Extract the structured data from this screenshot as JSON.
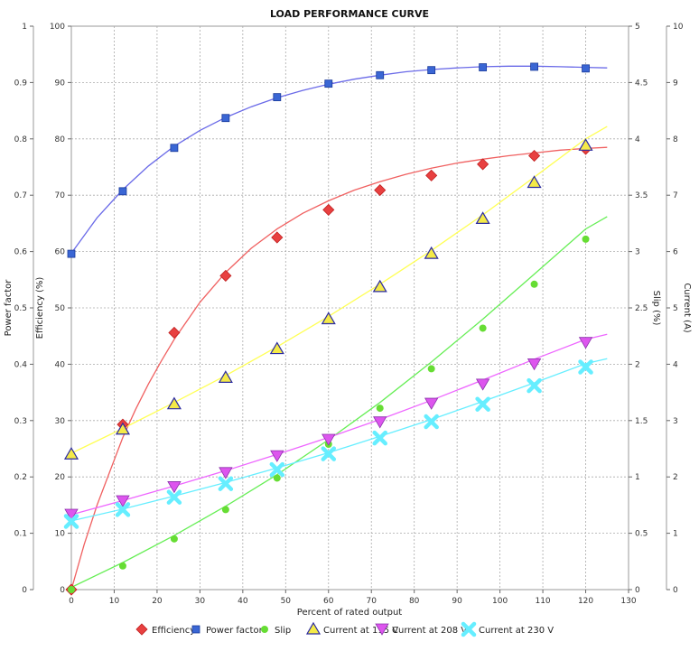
{
  "chart_data": {
    "type": "scatter",
    "title": "LOAD PERFORMANCE CURVE",
    "xlabel": "Percent of rated output",
    "xlim": [
      0,
      130
    ],
    "x_ticks": [
      "0",
      "10",
      "20",
      "30",
      "40",
      "50",
      "60",
      "70",
      "80",
      "90",
      "100",
      "110",
      "120",
      "130"
    ],
    "grid": true,
    "legend_position": "bottom",
    "axes": {
      "power_factor": {
        "label": "Power factor",
        "range": [
          0,
          1
        ],
        "ticks": [
          "0",
          "0.1",
          "0.2",
          "0.3",
          "0.4",
          "0.5",
          "0.6",
          "0.7",
          "0.8",
          "0.9",
          "1"
        ]
      },
      "efficiency": {
        "label": "Efficiency (%)",
        "range": [
          0,
          100
        ],
        "ticks": [
          "0",
          "10",
          "20",
          "30",
          "40",
          "50",
          "60",
          "70",
          "80",
          "90",
          "100"
        ]
      },
      "slip": {
        "label": "Slip (%)",
        "range": [
          0,
          5
        ],
        "ticks": [
          "0",
          "0.5",
          "1",
          "1.5",
          "2",
          "2.5",
          "3",
          "3.5",
          "4",
          "4.5",
          "5"
        ]
      },
      "current": {
        "label": "Current (A)",
        "range": [
          0,
          10
        ],
        "ticks": [
          "0",
          "1",
          "2",
          "3",
          "4",
          "5",
          "6",
          "7",
          "8",
          "9",
          "10"
        ]
      }
    },
    "series": [
      {
        "name": "Efficiency",
        "axis": "efficiency",
        "marker": "diamond",
        "color": "#e84040",
        "line_color": "#f06060",
        "points": [
          [
            0,
            0
          ],
          [
            12,
            29.3
          ],
          [
            24,
            45.6
          ],
          [
            36,
            55.7
          ],
          [
            48,
            62.5
          ],
          [
            60,
            67.4
          ],
          [
            72,
            70.9
          ],
          [
            84,
            73.5
          ],
          [
            96,
            75.5
          ],
          [
            108,
            77
          ],
          [
            120,
            78.2
          ]
        ],
        "curve": [
          [
            0,
            0
          ],
          [
            3,
            8
          ],
          [
            6,
            15
          ],
          [
            9,
            21
          ],
          [
            12,
            27
          ],
          [
            15,
            32
          ],
          [
            18,
            36.5
          ],
          [
            21,
            40.6
          ],
          [
            24,
            44.4
          ],
          [
            30,
            51
          ],
          [
            36,
            56.3
          ],
          [
            42,
            60.6
          ],
          [
            48,
            64
          ],
          [
            54,
            66.8
          ],
          [
            60,
            69
          ],
          [
            66,
            70.9
          ],
          [
            72,
            72.4
          ],
          [
            78,
            73.7
          ],
          [
            84,
            74.8
          ],
          [
            90,
            75.7
          ],
          [
            96,
            76.4
          ],
          [
            102,
            77
          ],
          [
            108,
            77.5
          ],
          [
            114,
            78
          ],
          [
            120,
            78.3
          ],
          [
            125,
            78.5
          ]
        ]
      },
      {
        "name": "Power factor",
        "axis": "power_factor",
        "marker": "square",
        "color": "#3a66d4",
        "line_color": "#6a6ae8",
        "points": [
          [
            0,
            0.596
          ],
          [
            12,
            0.707
          ],
          [
            24,
            0.784
          ],
          [
            36,
            0.837
          ],
          [
            48,
            0.874
          ],
          [
            60,
            0.898
          ],
          [
            72,
            0.913
          ],
          [
            84,
            0.922
          ],
          [
            96,
            0.927
          ],
          [
            108,
            0.928
          ],
          [
            120,
            0.925
          ]
        ],
        "curve": [
          [
            0,
            0.597
          ],
          [
            6,
            0.66
          ],
          [
            12,
            0.71
          ],
          [
            18,
            0.752
          ],
          [
            24,
            0.787
          ],
          [
            30,
            0.815
          ],
          [
            36,
            0.838
          ],
          [
            42,
            0.857
          ],
          [
            48,
            0.873
          ],
          [
            54,
            0.886
          ],
          [
            60,
            0.897
          ],
          [
            66,
            0.906
          ],
          [
            72,
            0.913
          ],
          [
            78,
            0.919
          ],
          [
            84,
            0.923
          ],
          [
            90,
            0.926
          ],
          [
            96,
            0.928
          ],
          [
            102,
            0.929
          ],
          [
            108,
            0.929
          ],
          [
            114,
            0.928
          ],
          [
            120,
            0.927
          ],
          [
            125,
            0.926
          ]
        ]
      },
      {
        "name": "Slip",
        "axis": "slip",
        "marker": "circle",
        "color": "#66dd33",
        "line_color": "#66ee55",
        "points": [
          [
            0,
            0
          ],
          [
            12,
            0.21
          ],
          [
            24,
            0.45
          ],
          [
            36,
            0.71
          ],
          [
            48,
            0.99
          ],
          [
            60,
            1.29
          ],
          [
            72,
            1.61
          ],
          [
            84,
            1.96
          ],
          [
            96,
            2.32
          ],
          [
            108,
            2.71
          ],
          [
            120,
            3.11
          ]
        ],
        "curve": [
          [
            0,
            0.02
          ],
          [
            12,
            0.24
          ],
          [
            24,
            0.48
          ],
          [
            36,
            0.74
          ],
          [
            48,
            1.02
          ],
          [
            60,
            1.33
          ],
          [
            72,
            1.66
          ],
          [
            84,
            2.02
          ],
          [
            96,
            2.4
          ],
          [
            108,
            2.8
          ],
          [
            120,
            3.2
          ],
          [
            125,
            3.31
          ]
        ]
      },
      {
        "name": "Current at 115 V",
        "axis": "current",
        "marker": "triangle-up",
        "color": "#f4ea48",
        "line_color": "#ffff55",
        "points": [
          [
            0,
            2.4
          ],
          [
            12,
            2.84
          ],
          [
            24,
            3.29
          ],
          [
            36,
            3.76
          ],
          [
            48,
            4.27
          ],
          [
            60,
            4.8
          ],
          [
            72,
            5.37
          ],
          [
            84,
            5.96
          ],
          [
            96,
            6.58
          ],
          [
            108,
            7.22
          ],
          [
            120,
            7.88
          ]
        ],
        "curve": [
          [
            0,
            2.42
          ],
          [
            12,
            2.86
          ],
          [
            24,
            3.32
          ],
          [
            36,
            3.8
          ],
          [
            48,
            4.31
          ],
          [
            60,
            4.85
          ],
          [
            72,
            5.42
          ],
          [
            84,
            6.02
          ],
          [
            96,
            6.65
          ],
          [
            108,
            7.32
          ],
          [
            120,
            8.0
          ],
          [
            125,
            8.22
          ]
        ]
      },
      {
        "name": "Current at 208 V",
        "axis": "current",
        "marker": "triangle-down",
        "color": "#dd55ee",
        "line_color": "#ee66ff",
        "points": [
          [
            0,
            1.33
          ],
          [
            12,
            1.57
          ],
          [
            24,
            1.82
          ],
          [
            36,
            2.07
          ],
          [
            48,
            2.37
          ],
          [
            60,
            2.66
          ],
          [
            72,
            2.97
          ],
          [
            84,
            3.3
          ],
          [
            96,
            3.64
          ],
          [
            108,
            4.0
          ],
          [
            120,
            4.38
          ]
        ],
        "curve": [
          [
            0,
            1.33
          ],
          [
            12,
            1.58
          ],
          [
            24,
            1.84
          ],
          [
            36,
            2.11
          ],
          [
            48,
            2.4
          ],
          [
            60,
            2.7
          ],
          [
            72,
            3.02
          ],
          [
            84,
            3.36
          ],
          [
            96,
            3.72
          ],
          [
            108,
            4.09
          ],
          [
            120,
            4.44
          ],
          [
            125,
            4.53
          ]
        ]
      },
      {
        "name": "Current at 230 V",
        "axis": "current",
        "marker": "x",
        "color": "#66eeff",
        "line_color": "#66eeff",
        "points": [
          [
            0,
            1.21
          ],
          [
            12,
            1.42
          ],
          [
            24,
            1.64
          ],
          [
            36,
            1.88
          ],
          [
            48,
            2.13
          ],
          [
            60,
            2.41
          ],
          [
            72,
            2.69
          ],
          [
            84,
            2.98
          ],
          [
            96,
            3.29
          ],
          [
            108,
            3.62
          ],
          [
            120,
            3.95
          ]
        ],
        "curve": [
          [
            0,
            1.22
          ],
          [
            12,
            1.43
          ],
          [
            24,
            1.66
          ],
          [
            36,
            1.9
          ],
          [
            48,
            2.16
          ],
          [
            60,
            2.43
          ],
          [
            72,
            2.72
          ],
          [
            84,
            3.02
          ],
          [
            96,
            3.34
          ],
          [
            108,
            3.67
          ],
          [
            120,
            4.01
          ],
          [
            125,
            4.1
          ]
        ]
      }
    ]
  }
}
